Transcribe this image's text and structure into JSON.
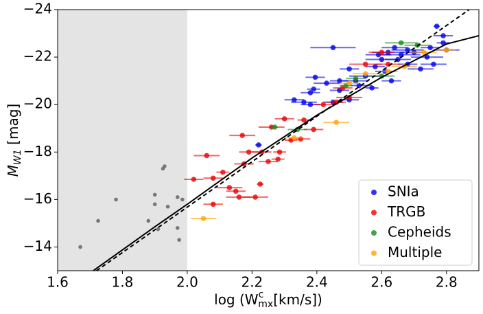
{
  "chart_data": {
    "type": "scatter",
    "xlabel_parts": [
      "log (W",
      "c",
      "mx",
      "[km/s])"
    ],
    "ylabel_parts": [
      "M",
      "W1",
      " [mag]"
    ],
    "xlim": [
      1.6,
      2.9
    ],
    "ylim": [
      -13,
      -24
    ],
    "xticks": [
      1.6,
      1.8,
      {
        "value": 2,
        "label": "2.0"
      },
      2.2,
      2.4,
      2.6,
      2.8
    ],
    "yticks": [
      {
        "value": -14,
        "label": "−14"
      },
      {
        "value": -16,
        "label": "−16"
      },
      {
        "value": -18,
        "label": "−18"
      },
      {
        "value": -20,
        "label": "−20"
      },
      {
        "value": -22,
        "label": "−22"
      },
      {
        "value": -24,
        "label": "−24"
      }
    ],
    "shaded_xrange": [
      1.6,
      2
    ],
    "legend_corner": "lower right",
    "excluded": {
      "color": "#777777",
      "x": [
        1.67,
        1.725,
        1.78,
        1.9,
        1.925,
        1.93,
        1.9,
        1.94,
        1.88,
        1.91,
        1.97,
        1.985,
        1.97,
        1.975
      ],
      "y": [
        -14.0,
        -15.1,
        -16.0,
        -16.2,
        -17.3,
        -17.4,
        -15.8,
        -15.7,
        -15.1,
        -14.75,
        -16.1,
        -16.0,
        -14.8,
        -14.3
      ]
    },
    "curves": [
      {
        "style": "solid",
        "color": "#000000",
        "x": [
          1.71,
          1.9,
          2.0,
          2.2,
          2.4,
          2.6,
          2.7,
          2.8,
          2.9
        ],
        "y": [
          -13,
          -14.85,
          -15.8,
          -17.75,
          -19.55,
          -21.15,
          -21.85,
          -22.55,
          -22.9
        ]
      },
      {
        "style": "dashed",
        "color": "#000000",
        "x": [
          1.72,
          2.87
        ],
        "y": [
          -13,
          -24
        ]
      }
    ],
    "series": [
      {
        "name": "SNIa",
        "color": "#0000ee",
        "x": [
          2.22,
          2.33,
          2.36,
          2.38,
          2.38,
          2.39,
          2.395,
          2.43,
          2.45,
          2.45,
          2.47,
          2.47,
          2.5,
          2.5,
          2.52,
          2.53,
          2.55,
          2.57,
          2.58,
          2.59,
          2.6,
          2.61,
          2.62,
          2.63,
          2.64,
          2.65,
          2.66,
          2.68,
          2.68,
          2.7,
          2.72,
          2.74,
          2.75,
          2.77,
          2.79,
          2.79,
          2.76,
          2.8
        ],
        "values": [
          -18.3,
          -20.2,
          -20.1,
          -20.5,
          -20.0,
          -20.65,
          -21.15,
          -20.9,
          -22.4,
          -20.1,
          -20.6,
          -21.0,
          -20.2,
          -21.5,
          -21.0,
          -20.8,
          -21.2,
          -20.7,
          -21.6,
          -22.1,
          -21.9,
          -21.4,
          -22.2,
          -21.0,
          -22.4,
          -21.9,
          -22.1,
          -22.3,
          -21.7,
          -22.2,
          -21.5,
          -22.0,
          -22.4,
          -23.3,
          -22.9,
          -22.6,
          -21.7,
          -22.3
        ],
        "xerr": [
          0.01,
          0.03,
          0.04,
          0.03,
          0.03,
          0.02,
          0.03,
          0.04,
          0.07,
          0.03,
          0.03,
          0.03,
          0.03,
          0.03,
          0.04,
          0.04,
          0.05,
          0.02,
          0.03,
          0.04,
          0.05,
          0.03,
          0.05,
          0.03,
          0.04,
          0.04,
          0.06,
          0.05,
          0.03,
          0.04,
          0.04,
          0.05,
          0.03,
          0.01,
          0.03,
          0.02,
          0.04,
          0.04
        ]
      },
      {
        "name": "TRGB",
        "color": "#ee0000",
        "x": [
          2.02,
          2.06,
          2.08,
          2.08,
          2.11,
          2.13,
          2.15,
          2.17,
          2.16,
          2.175,
          2.19,
          2.21,
          2.225,
          2.23,
          2.25,
          2.28,
          2.285,
          2.3,
          2.32,
          2.26,
          2.35,
          2.36,
          2.39,
          2.42,
          2.46,
          2.5,
          2.55,
          2.6,
          2.48,
          2.62
        ],
        "values": [
          -16.85,
          -17.85,
          -15.8,
          -16.9,
          -17.15,
          -16.5,
          -16.35,
          -18.7,
          -16.1,
          -17.5,
          -18.0,
          -16.1,
          -16.65,
          -18.0,
          -17.6,
          -17.7,
          -18.0,
          -19.4,
          -18.5,
          -19.05,
          -18.55,
          -19.35,
          -18.95,
          -20.0,
          -20.1,
          -20.3,
          -21.7,
          -22.2,
          -20.7,
          -21.7
        ],
        "xerr": [
          0.03,
          0.04,
          0.03,
          0.03,
          0.02,
          0.04,
          0.03,
          0.04,
          0.04,
          0.03,
          0.03,
          0.04,
          0.01,
          0.03,
          0.03,
          0.02,
          0.02,
          0.03,
          0.02,
          0.04,
          0.03,
          0.02,
          0.03,
          0.03,
          0.03,
          0.04,
          0.05,
          0.04,
          0.03,
          0.04
        ]
      },
      {
        "name": "Cepheids",
        "color": "#1a8a1a",
        "x": [
          2.34,
          2.49,
          2.52,
          2.6,
          2.66,
          2.71,
          2.27
        ],
        "values": [
          -18.95,
          -20.8,
          -21.1,
          -21.2,
          -22.6,
          -22.5,
          -19.05
        ],
        "xerr": [
          0.03,
          0.02,
          0.03,
          0.04,
          0.05,
          0.04,
          0.01
        ]
      },
      {
        "name": "Multiple",
        "color": "#ffa500",
        "x": [
          2.05,
          2.33,
          2.46,
          2.55,
          2.62,
          2.67,
          2.73,
          2.8,
          2.5
        ],
        "values": [
          -15.2,
          -18.6,
          -19.25,
          -21.3,
          -21.4,
          -21.6,
          -22.2,
          -22.3,
          -20.9
        ],
        "xerr": [
          0.04,
          0.03,
          0.04,
          0.04,
          0.03,
          0.04,
          0.04,
          0.03,
          0.03
        ]
      }
    ]
  }
}
